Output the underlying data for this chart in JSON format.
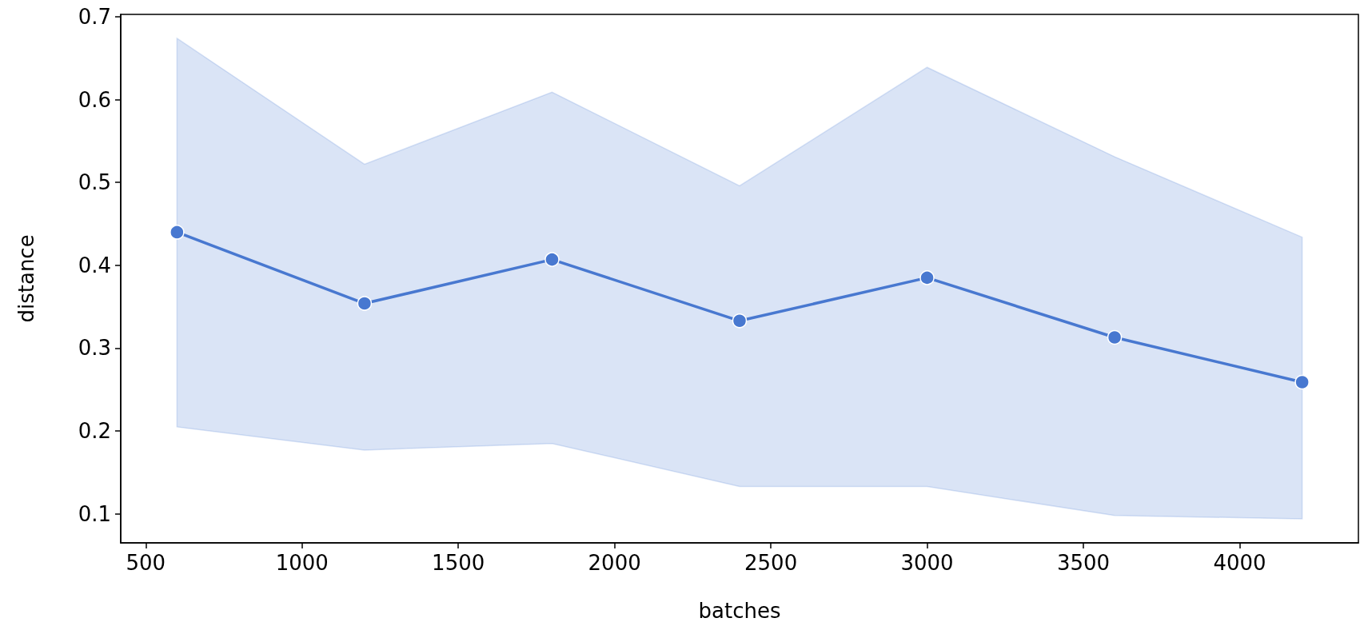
{
  "chart_data": {
    "type": "line",
    "xlabel": "batches",
    "ylabel": "distance",
    "x": [
      600,
      1200,
      1800,
      2400,
      3000,
      3600,
      4200
    ],
    "series": [
      {
        "color": "#4878d0",
        "values": [
          0.44,
          0.354,
          0.407,
          0.333,
          0.385,
          0.313,
          0.259
        ],
        "lower": [
          0.205,
          0.177,
          0.185,
          0.133,
          0.133,
          0.098,
          0.094
        ],
        "upper": [
          0.674,
          0.522,
          0.609,
          0.496,
          0.639,
          0.531,
          0.434
        ]
      }
    ],
    "xlim": [
      420,
      4380
    ],
    "xticks": [
      500,
      1000,
      1500,
      2000,
      2500,
      3000,
      3500,
      4000
    ],
    "ylim": [
      0.065,
      0.703
    ],
    "yticks": [
      0.1,
      0.2,
      0.3,
      0.4,
      0.5,
      0.6,
      0.7
    ],
    "marker": "circle",
    "line_style": "solid",
    "grid": false
  }
}
